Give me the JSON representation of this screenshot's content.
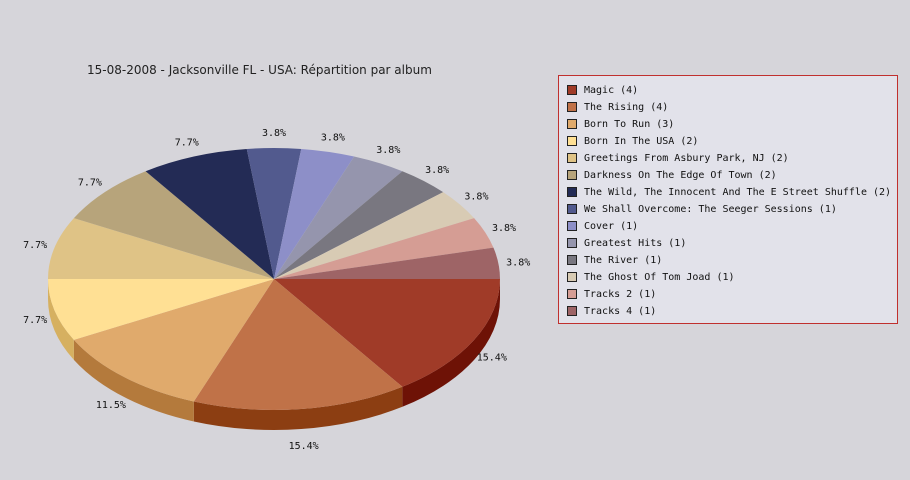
{
  "chart_data": {
    "type": "pie",
    "title": "15-08-2008 - Jacksonville FL - USA:  Répartition par album",
    "legend_placement": "right",
    "slices": [
      {
        "label": "Magic",
        "legend": "Magic (4)",
        "count": 4,
        "percent_label": "15.4%",
        "color": "#a03b28",
        "side": "#6e1206"
      },
      {
        "label": "The Rising",
        "legend": "The Rising (4)",
        "count": 4,
        "percent_label": "15.4%",
        "color": "#c07248",
        "side": "#8c3e12"
      },
      {
        "label": "Born To Run",
        "legend": "Born To Run (3)",
        "count": 3,
        "percent_label": "11.5%",
        "color": "#e0aa6c",
        "side": "#b47a3c"
      },
      {
        "label": "Born In The USA",
        "legend": "Born In The USA (2)",
        "count": 2,
        "percent_label": "7.7%",
        "color": "#ffe094",
        "side": "#d6b060"
      },
      {
        "label": "Greetings From Asbury Park, NJ",
        "legend": "Greetings From Asbury Park, NJ (2)",
        "count": 2,
        "percent_label": "7.7%",
        "color": "#dfc386",
        "side": "#b49856"
      },
      {
        "label": "Darkness On The Edge Of Town",
        "legend": "Darkness On The Edge Of Town (2)",
        "count": 2,
        "percent_label": "7.7%",
        "color": "#b7a47b",
        "side": "#8c7a52"
      },
      {
        "label": "The Wild, The Innocent And The E Street Shuffle",
        "legend": "The Wild, The Innocent And The E Street Shuffle (2)",
        "count": 2,
        "percent_label": "7.7%",
        "color": "#232b55",
        "side": "#12163a"
      },
      {
        "label": "We Shall Overcome: The Seeger Sessions",
        "legend": "We Shall Overcome: The Seeger Sessions (1)",
        "count": 1,
        "percent_label": "3.8%",
        "color": "#525a8e",
        "side": "#343a66"
      },
      {
        "label": "Cover",
        "legend": "Cover (1)",
        "count": 1,
        "percent_label": "3.8%",
        "color": "#8d8fc8",
        "side": "#6466a0"
      },
      {
        "label": "Greatest Hits",
        "legend": "Greatest Hits (1)",
        "count": 1,
        "percent_label": "3.8%",
        "color": "#9595ad",
        "side": "#6c6c84"
      },
      {
        "label": "The River",
        "legend": "The River (1)",
        "count": 1,
        "percent_label": "3.8%",
        "color": "#797780",
        "side": "#54525a"
      },
      {
        "label": "The Ghost Of Tom Joad",
        "legend": "The Ghost Of Tom Joad (1)",
        "count": 1,
        "percent_label": "3.8%",
        "color": "#d8cbb4",
        "side": "#b0a288"
      },
      {
        "label": "Tracks 2",
        "legend": "Tracks 2 (1)",
        "count": 1,
        "percent_label": "3.8%",
        "color": "#d59d94",
        "side": "#aa726a"
      },
      {
        "label": "Tracks 4",
        "legend": "Tracks 4 (1)",
        "count": 1,
        "percent_label": "3.8%",
        "color": "#9e6466",
        "side": "#743c3e"
      }
    ]
  }
}
